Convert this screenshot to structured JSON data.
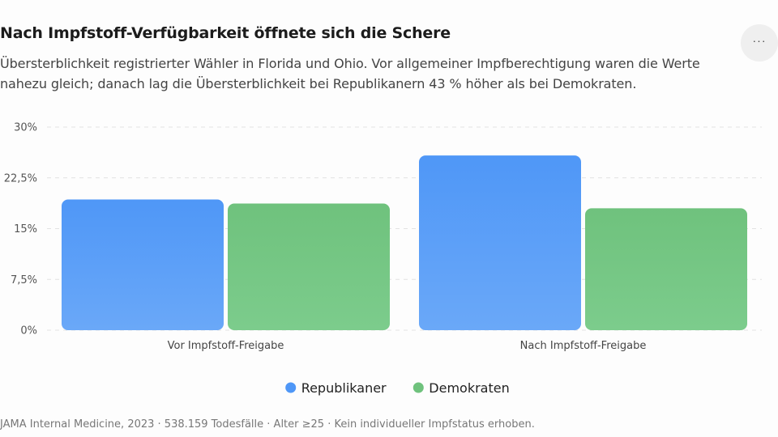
{
  "header": {
    "title": "Nach Impfstoff-Verfügbarkeit öffnete sich die Schere",
    "subtitle": "Übersterblichkeit registrierter Wähler in Florida und Ohio. Vor allgemeiner Impfberechtigung waren die Werte nahezu gleich; danach lag die Übersterblichkeit bei Republikanern 43 % höher als bei Demokraten.",
    "more_button": "···"
  },
  "chart_data": {
    "type": "bar",
    "categories": [
      "Vor Impfstoff-Freigabe",
      "Nach Impfstoff-Freigabe"
    ],
    "series": [
      {
        "name": "Republikaner",
        "values": [
          19.3,
          25.8
        ],
        "color": "#4f97f7"
      },
      {
        "name": "Demokraten",
        "values": [
          18.7,
          18.0
        ],
        "color": "#6fc27d"
      }
    ],
    "yticks": [
      "0%",
      "7,5%",
      "15%",
      "22,5%",
      "30%"
    ],
    "ytick_values": [
      0,
      7.5,
      15,
      22.5,
      30
    ],
    "ylim": [
      0,
      30
    ],
    "grid": true,
    "legend": "bottom"
  },
  "footer": {
    "source": "JAMA Internal Medicine, 2023 · 538.159 Todesfälle · Alter ≥25 · Kein individueller Impfstatus erhoben."
  }
}
